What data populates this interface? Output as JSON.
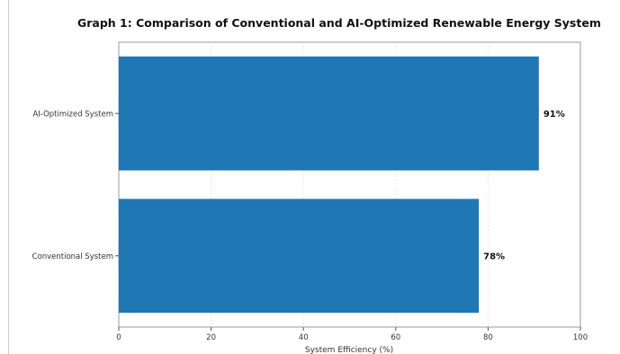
{
  "chart_data": {
    "type": "bar",
    "orientation": "horizontal",
    "title": "Graph 1: Comparison of Conventional and AI-Optimized Renewable Energy System",
    "xlabel": "System Efficiency (%)",
    "ylabel": "",
    "categories": [
      "Conventional System",
      "AI-Optimized System"
    ],
    "values": [
      78,
      91
    ],
    "value_labels": [
      "78%",
      "91%"
    ],
    "xlim": [
      0,
      100
    ],
    "xticks": [
      0,
      20,
      40,
      60,
      80,
      100
    ],
    "grid": true,
    "legend": "none",
    "bar_color": "#1f77b4"
  }
}
